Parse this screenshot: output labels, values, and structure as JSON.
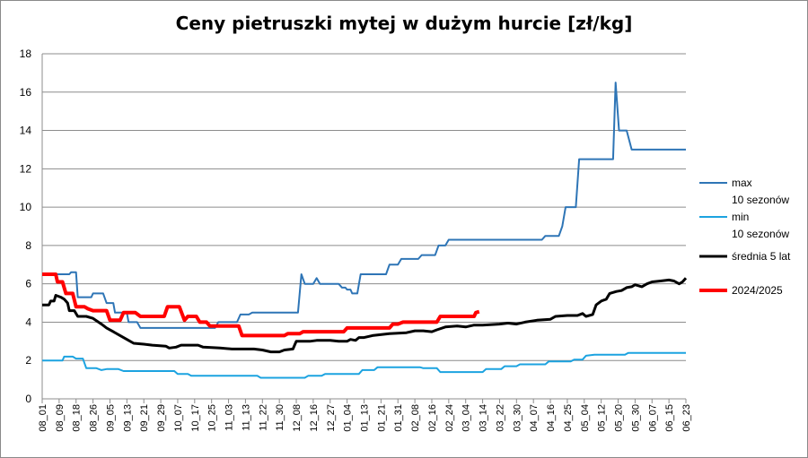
{
  "chart_data": {
    "type": "line",
    "title": "Ceny pietruszki mytej w dużym hurcie [zł/kg]",
    "xlabel": "",
    "ylabel": "",
    "ylim": [
      0,
      18
    ],
    "yticks": [
      0,
      2,
      4,
      6,
      8,
      10,
      12,
      14,
      16,
      18
    ],
    "grid": "horizontal",
    "legend_position": "right",
    "x_tick_labels": [
      "08_01",
      "08_09",
      "08_18",
      "08_26",
      "09_05",
      "09_13",
      "09_21",
      "09_29",
      "10_07",
      "10_17",
      "10_25",
      "11_03",
      "11_13",
      "11_22",
      "11_30",
      "12_08",
      "12_16",
      "12_27",
      "01_04",
      "01_13",
      "01_21",
      "01_31",
      "02_08",
      "02_16",
      "02_24",
      "03_04",
      "03_14",
      "03_22",
      "03_30",
      "04_07",
      "04_16",
      "04_25",
      "05_04",
      "05_12",
      "05_20",
      "05_30",
      "06_07",
      "06_15",
      "06_23"
    ],
    "x_range": [
      0,
      38
    ],
    "series": [
      {
        "name": "max\n10 sezonów",
        "color": "#2E75B6",
        "width": 2,
        "points": [
          [
            0,
            6.5
          ],
          [
            1.6,
            6.5
          ],
          [
            1.7,
            6.6
          ],
          [
            2.0,
            6.6
          ],
          [
            2.1,
            5.3
          ],
          [
            2.9,
            5.3
          ],
          [
            3.0,
            5.5
          ],
          [
            3.6,
            5.5
          ],
          [
            3.8,
            5.0
          ],
          [
            4.2,
            5.0
          ],
          [
            4.3,
            4.5
          ],
          [
            5.0,
            4.5
          ],
          [
            5.1,
            4.0
          ],
          [
            5.6,
            4.0
          ],
          [
            5.8,
            3.7
          ],
          [
            10.2,
            3.7
          ],
          [
            10.4,
            4.0
          ],
          [
            11.5,
            4.0
          ],
          [
            11.7,
            4.4
          ],
          [
            12.2,
            4.4
          ],
          [
            12.4,
            4.5
          ],
          [
            15.1,
            4.5
          ],
          [
            15.3,
            6.5
          ],
          [
            15.5,
            6.0
          ],
          [
            16.0,
            6.0
          ],
          [
            16.2,
            6.3
          ],
          [
            16.4,
            6.0
          ],
          [
            17.5,
            6.0
          ],
          [
            17.7,
            5.8
          ],
          [
            17.9,
            5.8
          ],
          [
            18.0,
            5.7
          ],
          [
            18.2,
            5.7
          ],
          [
            18.3,
            5.5
          ],
          [
            18.6,
            5.5
          ],
          [
            18.8,
            6.5
          ],
          [
            20.3,
            6.5
          ],
          [
            20.5,
            7.0
          ],
          [
            21.0,
            7.0
          ],
          [
            21.2,
            7.3
          ],
          [
            22.2,
            7.3
          ],
          [
            22.4,
            7.5
          ],
          [
            23.2,
            7.5
          ],
          [
            23.4,
            8.0
          ],
          [
            23.8,
            8.0
          ],
          [
            24.0,
            8.3
          ],
          [
            29.5,
            8.3
          ],
          [
            29.7,
            8.5
          ],
          [
            30.5,
            8.5
          ],
          [
            30.7,
            9.0
          ],
          [
            30.9,
            10.0
          ],
          [
            31.5,
            10.0
          ],
          [
            31.7,
            12.5
          ],
          [
            33.7,
            12.5
          ],
          [
            33.85,
            16.5
          ],
          [
            34.05,
            14.0
          ],
          [
            34.5,
            14.0
          ],
          [
            34.8,
            13.0
          ],
          [
            38.0,
            13.0
          ]
        ]
      },
      {
        "name": "min\n10 sezonów",
        "color": "#1CA3E0",
        "width": 2,
        "points": [
          [
            0,
            2.0
          ],
          [
            1.2,
            2.0
          ],
          [
            1.3,
            2.2
          ],
          [
            1.8,
            2.2
          ],
          [
            2.0,
            2.1
          ],
          [
            2.4,
            2.1
          ],
          [
            2.6,
            1.6
          ],
          [
            3.2,
            1.6
          ],
          [
            3.5,
            1.5
          ],
          [
            3.8,
            1.55
          ],
          [
            4.5,
            1.55
          ],
          [
            4.8,
            1.45
          ],
          [
            7.8,
            1.45
          ],
          [
            8.0,
            1.3
          ],
          [
            8.6,
            1.3
          ],
          [
            8.8,
            1.2
          ],
          [
            12.7,
            1.2
          ],
          [
            12.9,
            1.1
          ],
          [
            15.5,
            1.1
          ],
          [
            15.7,
            1.2
          ],
          [
            16.5,
            1.2
          ],
          [
            16.7,
            1.3
          ],
          [
            18.7,
            1.3
          ],
          [
            18.9,
            1.5
          ],
          [
            19.6,
            1.5
          ],
          [
            19.8,
            1.65
          ],
          [
            22.3,
            1.65
          ],
          [
            22.5,
            1.6
          ],
          [
            23.3,
            1.6
          ],
          [
            23.5,
            1.4
          ],
          [
            26.0,
            1.4
          ],
          [
            26.2,
            1.55
          ],
          [
            27.1,
            1.55
          ],
          [
            27.3,
            1.7
          ],
          [
            28.0,
            1.7
          ],
          [
            28.2,
            1.8
          ],
          [
            29.7,
            1.8
          ],
          [
            29.9,
            1.95
          ],
          [
            31.2,
            1.95
          ],
          [
            31.4,
            2.05
          ],
          [
            31.9,
            2.05
          ],
          [
            32.1,
            2.25
          ],
          [
            32.6,
            2.3
          ],
          [
            34.4,
            2.3
          ],
          [
            34.6,
            2.4
          ],
          [
            38.0,
            2.4
          ]
        ]
      },
      {
        "name": "średnia 5 lat",
        "color": "#000000",
        "width": 3,
        "points": [
          [
            0,
            4.9
          ],
          [
            0.4,
            4.9
          ],
          [
            0.5,
            5.1
          ],
          [
            0.7,
            5.1
          ],
          [
            0.8,
            5.4
          ],
          [
            1.1,
            5.3
          ],
          [
            1.3,
            5.2
          ],
          [
            1.5,
            5.0
          ],
          [
            1.6,
            4.6
          ],
          [
            1.9,
            4.6
          ],
          [
            2.1,
            4.3
          ],
          [
            2.6,
            4.3
          ],
          [
            3.0,
            4.2
          ],
          [
            3.5,
            3.9
          ],
          [
            3.8,
            3.7
          ],
          [
            4.2,
            3.5
          ],
          [
            4.6,
            3.3
          ],
          [
            5.0,
            3.1
          ],
          [
            5.4,
            2.9
          ],
          [
            6.0,
            2.85
          ],
          [
            6.5,
            2.8
          ],
          [
            7.3,
            2.75
          ],
          [
            7.5,
            2.65
          ],
          [
            7.9,
            2.7
          ],
          [
            8.2,
            2.8
          ],
          [
            9.2,
            2.8
          ],
          [
            9.5,
            2.7
          ],
          [
            10.5,
            2.65
          ],
          [
            11.2,
            2.6
          ],
          [
            12.5,
            2.6
          ],
          [
            13.0,
            2.55
          ],
          [
            13.5,
            2.45
          ],
          [
            14.0,
            2.45
          ],
          [
            14.3,
            2.55
          ],
          [
            14.8,
            2.6
          ],
          [
            15.0,
            3.0
          ],
          [
            15.8,
            3.0
          ],
          [
            16.2,
            3.05
          ],
          [
            17.0,
            3.05
          ],
          [
            17.5,
            3.0
          ],
          [
            18.0,
            3.0
          ],
          [
            18.2,
            3.1
          ],
          [
            18.5,
            3.05
          ],
          [
            18.7,
            3.2
          ],
          [
            19.0,
            3.2
          ],
          [
            19.5,
            3.3
          ],
          [
            20.5,
            3.4
          ],
          [
            21.5,
            3.45
          ],
          [
            22.0,
            3.55
          ],
          [
            22.5,
            3.55
          ],
          [
            23.0,
            3.5
          ],
          [
            23.3,
            3.6
          ],
          [
            23.8,
            3.75
          ],
          [
            24.5,
            3.8
          ],
          [
            25.0,
            3.75
          ],
          [
            25.5,
            3.85
          ],
          [
            26.0,
            3.85
          ],
          [
            27.0,
            3.9
          ],
          [
            27.5,
            3.95
          ],
          [
            28.0,
            3.9
          ],
          [
            28.5,
            4.0
          ],
          [
            29.2,
            4.1
          ],
          [
            30.0,
            4.15
          ],
          [
            30.3,
            4.3
          ],
          [
            31.0,
            4.35
          ],
          [
            31.6,
            4.35
          ],
          [
            31.9,
            4.45
          ],
          [
            32.1,
            4.3
          ],
          [
            32.5,
            4.4
          ],
          [
            32.7,
            4.9
          ],
          [
            33.0,
            5.1
          ],
          [
            33.3,
            5.2
          ],
          [
            33.5,
            5.5
          ],
          [
            33.9,
            5.6
          ],
          [
            34.2,
            5.65
          ],
          [
            34.5,
            5.8
          ],
          [
            34.8,
            5.85
          ],
          [
            35.0,
            5.95
          ],
          [
            35.4,
            5.85
          ],
          [
            35.7,
            6.0
          ],
          [
            36.0,
            6.1
          ],
          [
            36.5,
            6.15
          ],
          [
            37.0,
            6.2
          ],
          [
            37.3,
            6.15
          ],
          [
            37.6,
            6.0
          ],
          [
            37.8,
            6.1
          ],
          [
            38.0,
            6.3
          ]
        ]
      },
      {
        "name": "2024/2025",
        "color": "#FF0000",
        "width": 4,
        "points": [
          [
            0,
            6.5
          ],
          [
            0.8,
            6.5
          ],
          [
            0.9,
            6.1
          ],
          [
            1.2,
            6.1
          ],
          [
            1.4,
            5.5
          ],
          [
            1.8,
            5.5
          ],
          [
            2.0,
            4.8
          ],
          [
            2.5,
            4.8
          ],
          [
            2.7,
            4.7
          ],
          [
            3.0,
            4.6
          ],
          [
            3.8,
            4.6
          ],
          [
            4.0,
            4.1
          ],
          [
            4.6,
            4.1
          ],
          [
            4.8,
            4.5
          ],
          [
            5.5,
            4.5
          ],
          [
            5.8,
            4.3
          ],
          [
            7.2,
            4.3
          ],
          [
            7.4,
            4.8
          ],
          [
            8.1,
            4.8
          ],
          [
            8.4,
            4.1
          ],
          [
            8.6,
            4.3
          ],
          [
            9.1,
            4.3
          ],
          [
            9.3,
            4.0
          ],
          [
            9.7,
            4.0
          ],
          [
            9.9,
            3.8
          ],
          [
            11.6,
            3.8
          ],
          [
            11.8,
            3.3
          ],
          [
            14.3,
            3.3
          ],
          [
            14.5,
            3.4
          ],
          [
            15.2,
            3.4
          ],
          [
            15.4,
            3.5
          ],
          [
            17.8,
            3.5
          ],
          [
            18.0,
            3.7
          ],
          [
            20.5,
            3.7
          ],
          [
            20.7,
            3.9
          ],
          [
            21.0,
            3.9
          ],
          [
            21.3,
            4.0
          ],
          [
            23.3,
            4.0
          ],
          [
            23.5,
            4.3
          ],
          [
            25.5,
            4.3
          ],
          [
            25.6,
            4.5
          ],
          [
            25.8,
            4.55
          ]
        ]
      }
    ]
  }
}
